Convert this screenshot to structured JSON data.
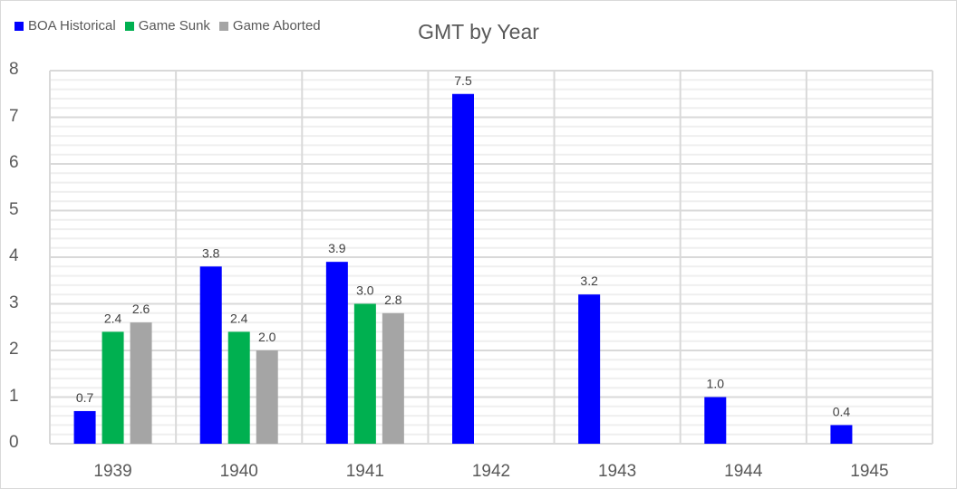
{
  "chart_data": {
    "type": "bar",
    "title": "GMT by Year",
    "xlabel": "",
    "ylabel": "",
    "ylim": [
      0,
      8
    ],
    "yticks": [
      "0",
      "1",
      "2",
      "3",
      "4",
      "5",
      "6",
      "7",
      "8"
    ],
    "grid": {
      "major": true,
      "minor": true,
      "minor_step": 0.2,
      "vertical_category_lines": true
    },
    "legend_position": "top-left",
    "categories": [
      "1939",
      "1940",
      "1941",
      "1942",
      "1943",
      "1944",
      "1945"
    ],
    "series": [
      {
        "name": "BOA Historical",
        "color": "#0000ff",
        "values": [
          0.7,
          3.8,
          3.9,
          7.5,
          3.2,
          1.0,
          0.4
        ],
        "labels": [
          "0.7",
          "3.8",
          "3.9",
          "7.5",
          "3.2",
          "1.0",
          "0.4"
        ]
      },
      {
        "name": "Game Sunk",
        "color": "#00b050",
        "values": [
          2.4,
          2.4,
          3.0,
          null,
          null,
          null,
          null
        ],
        "labels": [
          "2.4",
          "2.4",
          "3.0",
          "",
          "",
          "",
          ""
        ]
      },
      {
        "name": "Game Aborted",
        "color": "#a5a5a5",
        "values": [
          2.6,
          2.0,
          2.8,
          null,
          null,
          null,
          null
        ],
        "labels": [
          "2.6",
          "2.0",
          "2.8",
          "",
          "",
          "",
          ""
        ]
      }
    ]
  },
  "legend": {
    "items": [
      {
        "label": "BOA Historical",
        "color": "#0000ff"
      },
      {
        "label": "Game Sunk",
        "color": "#00b050"
      },
      {
        "label": "Game Aborted",
        "color": "#a5a5a5"
      }
    ]
  }
}
